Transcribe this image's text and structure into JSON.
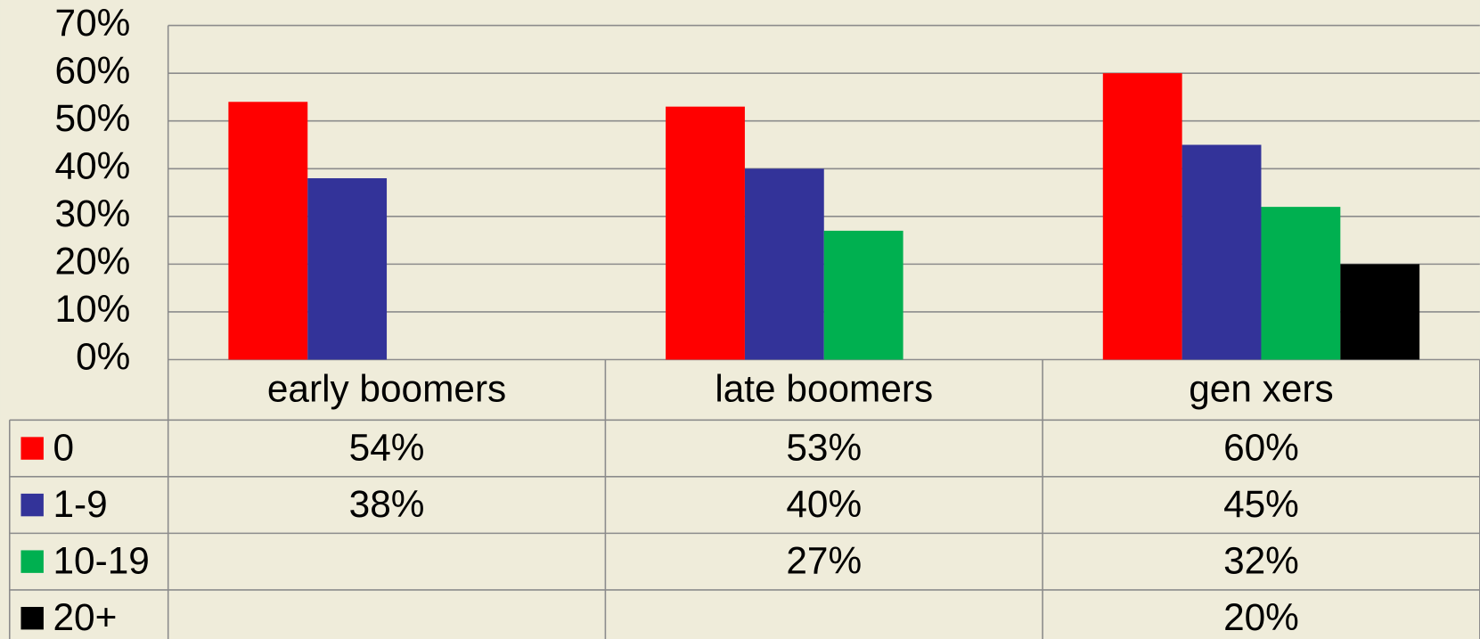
{
  "chart_data": {
    "type": "bar",
    "categories": [
      "early boomers",
      "late boomers",
      "gen xers"
    ],
    "series": [
      {
        "name": "0",
        "color": "#ff0000",
        "values": [
          54,
          53,
          60
        ],
        "value_labels": [
          "54%",
          "53%",
          "60%"
        ]
      },
      {
        "name": "1-9",
        "color": "#333399",
        "values": [
          38,
          40,
          45
        ],
        "value_labels": [
          "38%",
          "40%",
          "45%"
        ]
      },
      {
        "name": "10-19",
        "color": "#00b050",
        "values": [
          null,
          27,
          32
        ],
        "value_labels": [
          null,
          "27%",
          "32%"
        ]
      },
      {
        "name": "20+",
        "color": "#000000",
        "values": [
          null,
          null,
          20
        ],
        "value_labels": [
          null,
          null,
          "20%"
        ]
      }
    ],
    "ylim": [
      0,
      70
    ],
    "yticks": [
      {
        "value": 0,
        "label": "0%"
      },
      {
        "value": 10,
        "label": "10%"
      },
      {
        "value": 20,
        "label": "20%"
      },
      {
        "value": 30,
        "label": "30%"
      },
      {
        "value": 40,
        "label": "40%"
      },
      {
        "value": 50,
        "label": "50%"
      },
      {
        "value": 60,
        "label": "60%"
      },
      {
        "value": 70,
        "label": "70%"
      }
    ],
    "grid": true
  }
}
